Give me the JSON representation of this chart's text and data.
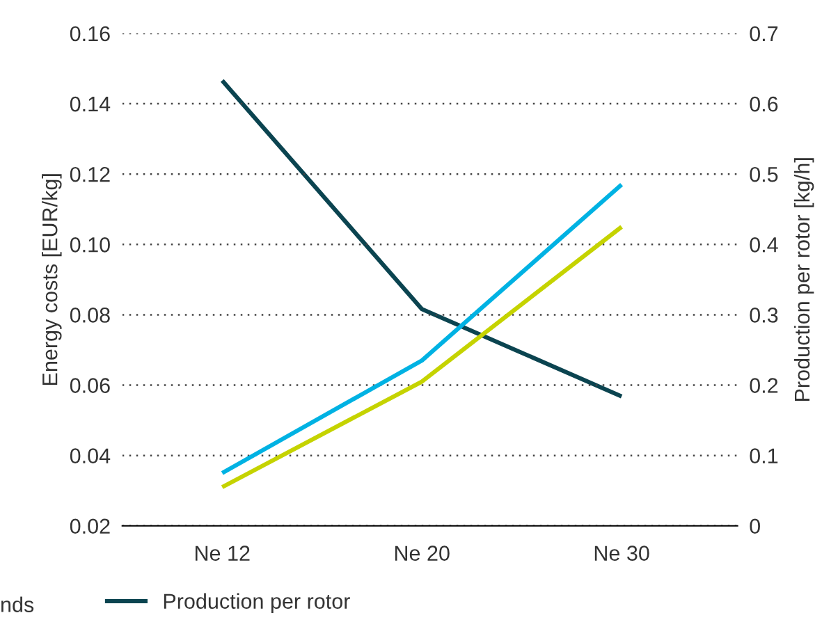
{
  "chart_data": {
    "type": "line",
    "categories": [
      "Ne 12",
      "Ne 20",
      "Ne 30"
    ],
    "ylabel": "Energy costs [EUR/kg]",
    "y2label": "Production per rotor [kg/h]",
    "ylim": [
      0.02,
      0.16
    ],
    "yticks": [
      {
        "value": 0.02,
        "label": "0.02"
      },
      {
        "value": 0.04,
        "label": "0.04"
      },
      {
        "value": 0.06,
        "label": "0.06"
      },
      {
        "value": 0.08,
        "label": "0.08"
      },
      {
        "value": 0.1,
        "label": "0.10"
      },
      {
        "value": 0.12,
        "label": "0.12"
      },
      {
        "value": 0.14,
        "label": "0.14"
      },
      {
        "value": 0.16,
        "label": "0.16"
      }
    ],
    "y2lim": [
      0,
      0.7
    ],
    "y2ticks": [
      0,
      0.1,
      0.2,
      0.3,
      0.4,
      0.5,
      0.6,
      0.7
    ],
    "series": [
      {
        "color": "#00b2e3",
        "values": [
          0.035,
          0.067,
          0.117
        ]
      },
      {
        "color": "#c5d300",
        "values": [
          0.031,
          0.061,
          0.105
        ]
      },
      {
        "name": "Production per rotor",
        "color": "#0b4450",
        "axis": "y2",
        "values": [
          0.633,
          0.308,
          0.184
        ]
      }
    ],
    "grid": "y",
    "legend": "bottom",
    "line_style": "solid",
    "marker": "none",
    "annotations": [
      "nds"
    ]
  }
}
